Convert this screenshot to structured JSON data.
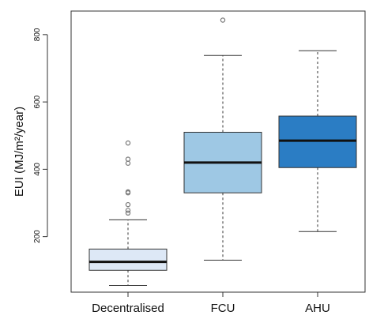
{
  "chart_data": {
    "type": "box",
    "title": "",
    "xlabel": "",
    "ylabel": "EUI (MJ/m²/year)",
    "ylim": [
      35,
      870
    ],
    "yticks": [
      200,
      400,
      600,
      800
    ],
    "grid": false,
    "categories": [
      "Decentralised",
      "FCU",
      "AHU"
    ],
    "boxes": [
      {
        "category": "Decentralised",
        "whisker_low": 55,
        "q1": 100,
        "median": 125,
        "q3": 163,
        "whisker_high": 250,
        "outliers": [
          270,
          278,
          295,
          330,
          333,
          418,
          430,
          478
        ],
        "color": "#dde8f6"
      },
      {
        "category": "FCU",
        "whisker_low": 130,
        "q1": 330,
        "median": 420,
        "q3": 510,
        "whisker_high": 738,
        "outliers": [
          843
        ],
        "color": "#9ec8e4"
      },
      {
        "category": "AHU",
        "whisker_low": 215,
        "q1": 405,
        "median": 485,
        "q3": 558,
        "whisker_high": 752,
        "outliers": [],
        "color": "#2b7dc4"
      }
    ]
  }
}
